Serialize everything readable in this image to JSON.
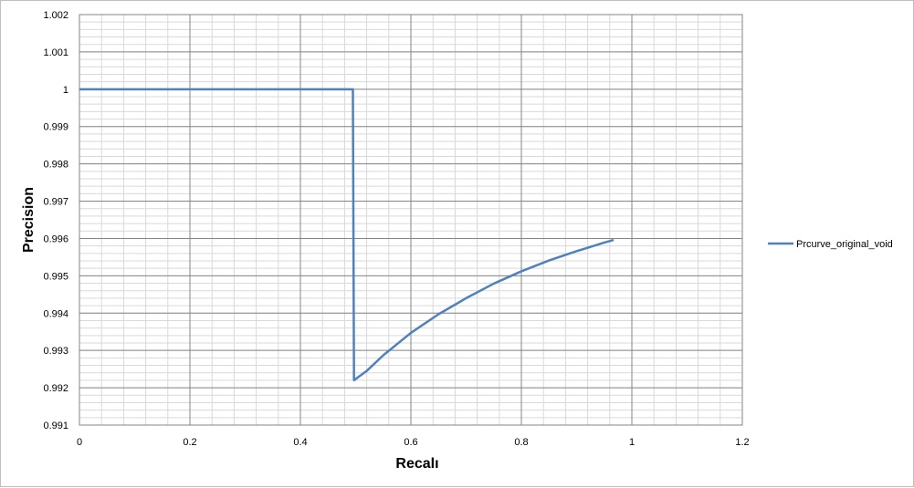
{
  "chart_data": {
    "type": "line",
    "title": "",
    "xlabel": "Recalı",
    "ylabel": "Precision",
    "xlim": [
      0,
      1.2
    ],
    "ylim": [
      0.991,
      1.002
    ],
    "x_ticks": [
      0,
      0.2,
      0.4,
      0.6,
      0.8,
      1,
      1.2
    ],
    "x_tick_labels": [
      "0",
      "0.2",
      "0.4",
      "0.6",
      "0.8",
      "1",
      "1.2"
    ],
    "y_ticks": [
      0.991,
      0.992,
      0.993,
      0.994,
      0.995,
      0.996,
      0.997,
      0.998,
      0.999,
      1,
      1.001,
      1.002
    ],
    "y_tick_labels": [
      "0.991",
      "0.992",
      "0.993",
      "0.994",
      "0.995",
      "0.996",
      "0.997",
      "0.998",
      "0.999",
      "1",
      "1.001",
      "1.002"
    ],
    "grid": true,
    "legend_position": "right",
    "series": [
      {
        "name": "Prcurve_original_void",
        "color": "#4f81bd",
        "points": [
          [
            0,
            1.0
          ],
          [
            0.495,
            1.0
          ],
          [
            0.497,
            0.9922
          ],
          [
            0.52,
            0.99245
          ],
          [
            0.55,
            0.99287
          ],
          [
            0.6,
            0.99347
          ],
          [
            0.65,
            0.99397
          ],
          [
            0.7,
            0.9944
          ],
          [
            0.75,
            0.99479
          ],
          [
            0.8,
            0.99512
          ],
          [
            0.85,
            0.99541
          ],
          [
            0.9,
            0.99566
          ],
          [
            0.95,
            0.99589
          ],
          [
            0.967,
            0.99596
          ]
        ]
      }
    ]
  }
}
